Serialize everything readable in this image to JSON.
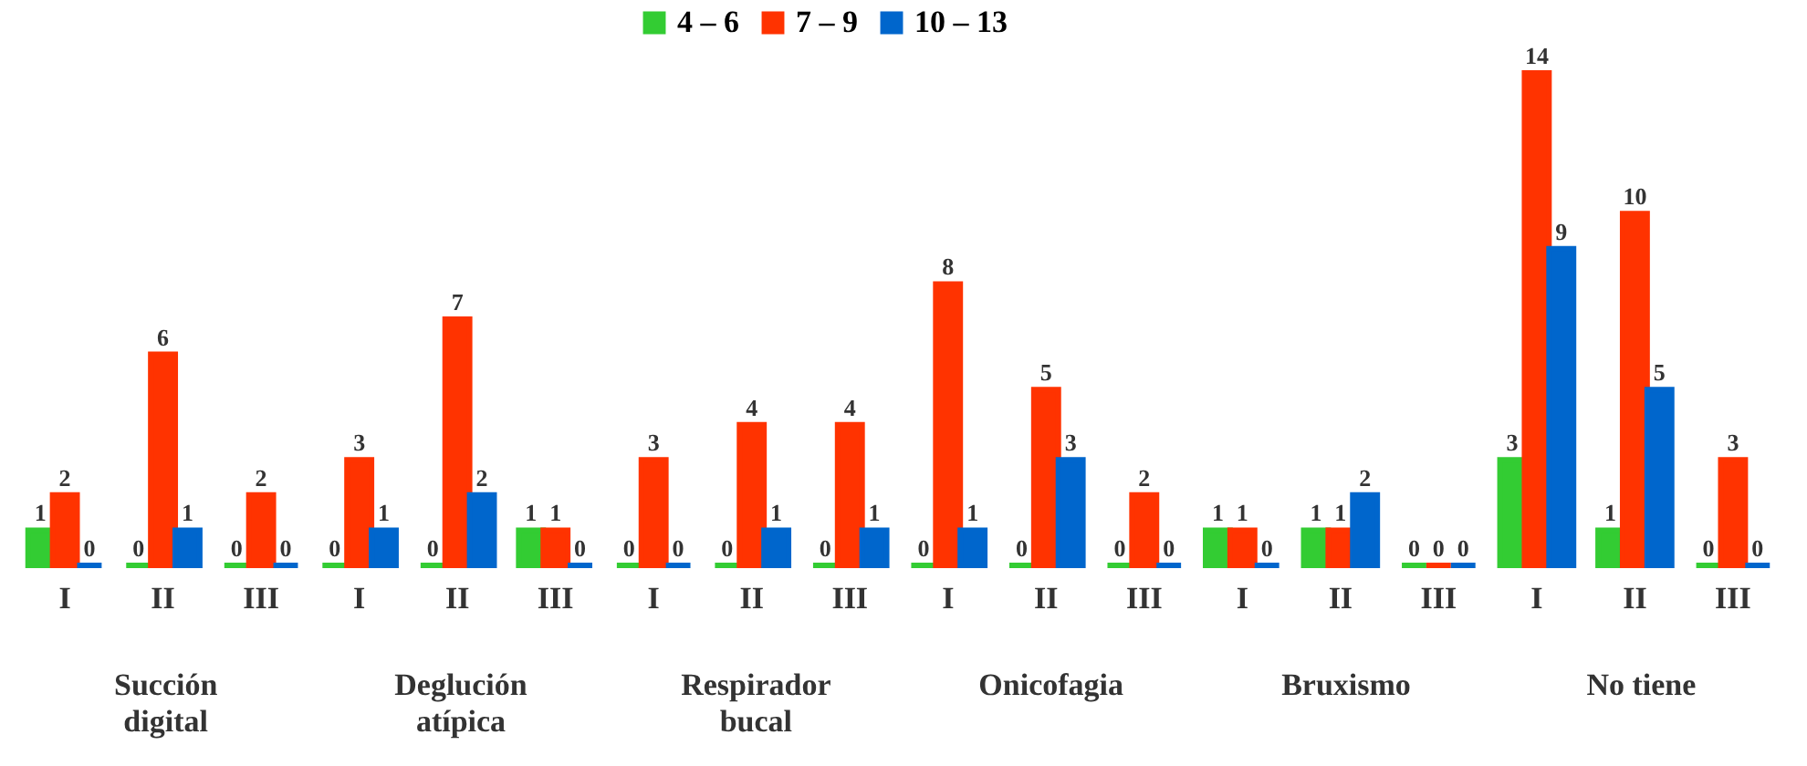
{
  "chart_data": {
    "type": "bar",
    "categories": [
      "I",
      "II",
      "III",
      "I",
      "II",
      "III",
      "I",
      "II",
      "III",
      "I",
      "II",
      "III",
      "I",
      "II",
      "III",
      "I",
      "II",
      "III"
    ],
    "series": [
      {
        "name": "4 – 6",
        "color": "#33cc33",
        "values": [
          1,
          0,
          0,
          0,
          0,
          1,
          0,
          0,
          0,
          0,
          0,
          0,
          1,
          1,
          0,
          3,
          1,
          0
        ]
      },
      {
        "name": "7 – 9",
        "color": "#ff3300",
        "values": [
          2,
          6,
          2,
          3,
          7,
          1,
          3,
          4,
          4,
          8,
          5,
          2,
          1,
          1,
          0,
          14,
          10,
          3
        ]
      },
      {
        "name": "10 – 13",
        "color": "#0066cc",
        "values": [
          0,
          1,
          0,
          1,
          2,
          0,
          0,
          1,
          1,
          1,
          3,
          0,
          0,
          2,
          0,
          9,
          5,
          0
        ]
      }
    ],
    "annotations": [
      "Succión digital",
      "Deglución atípica",
      "Respirador bucal",
      "Onicofagia",
      "Bruxismo",
      "No tiene"
    ],
    "data_labels": true,
    "legend": "top",
    "grid": false
  }
}
